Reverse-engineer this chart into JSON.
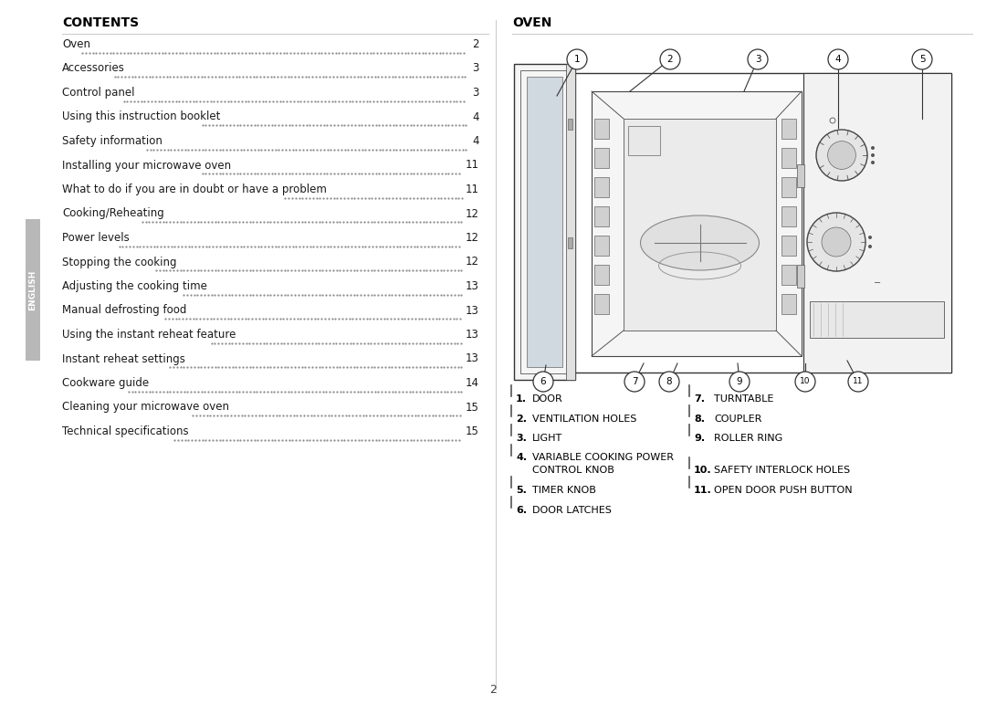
{
  "bg_color": "#ffffff",
  "left_title": "CONTENTS",
  "right_title": "OVEN",
  "contents_items": [
    [
      "Oven",
      "2"
    ],
    [
      "Accessories",
      "3"
    ],
    [
      "Control panel",
      "3"
    ],
    [
      "Using this instruction booklet",
      "4"
    ],
    [
      "Safety information",
      "4"
    ],
    [
      "Installing your microwave oven",
      "11"
    ],
    [
      "What to do if you are in doubt or have a problem",
      "11"
    ],
    [
      "Cooking/Reheating",
      "12"
    ],
    [
      "Power levels",
      "12"
    ],
    [
      "Stopping the cooking",
      "12"
    ],
    [
      "Adjusting the cooking time",
      "13"
    ],
    [
      "Manual defrosting food",
      "13"
    ],
    [
      "Using the instant reheat feature",
      "13"
    ],
    [
      "Instant reheat settings",
      "13"
    ],
    [
      "Cookware guide",
      "14"
    ],
    [
      "Cleaning your microwave oven",
      "15"
    ],
    [
      "Technical specifications",
      "15"
    ]
  ],
  "parts_col1": [
    [
      "1.",
      "DOOR"
    ],
    [
      "2.",
      "VENTILATION HOLES"
    ],
    [
      "3.",
      "LIGHT"
    ],
    [
      "4.",
      "VARIABLE COOKING POWER\nCONTROL KNOB"
    ],
    [
      "5.",
      "TIMER KNOB"
    ],
    [
      "6.",
      "DOOR LATCHES"
    ]
  ],
  "parts_col2": [
    [
      "7.",
      "TURNTABLE"
    ],
    [
      "8.",
      "COUPLER"
    ],
    [
      "9.",
      "ROLLER RING"
    ],
    [
      "10.",
      "SAFETY INTERLOCK HOLES"
    ],
    [
      "11.",
      "OPEN DOOR PUSH BUTTON"
    ]
  ],
  "page_number": "2"
}
